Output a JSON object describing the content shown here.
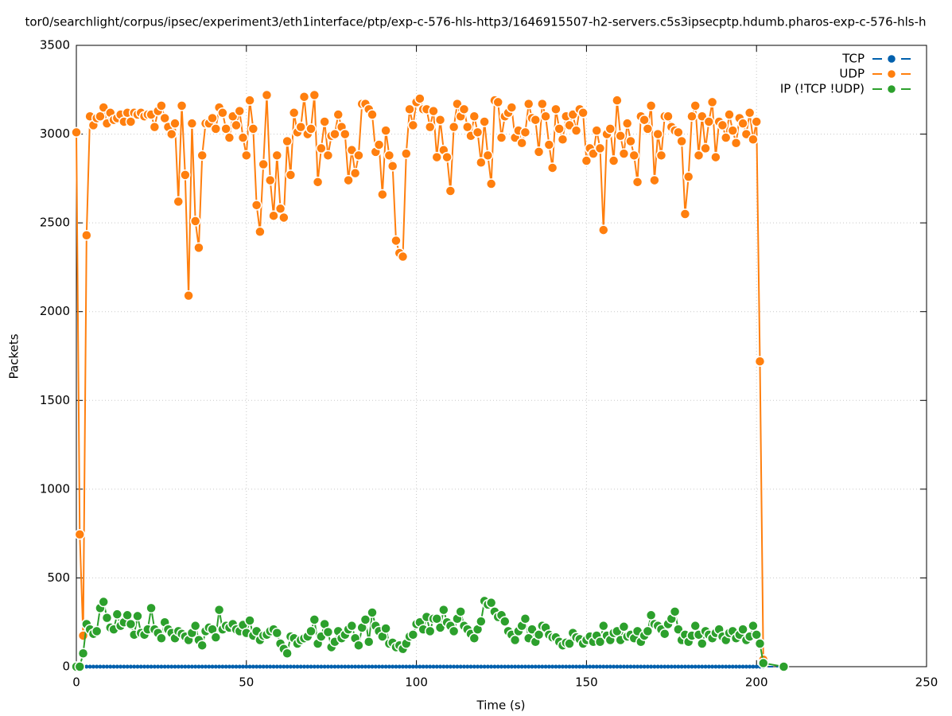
{
  "chart_data": {
    "type": "line",
    "title": "tor0/searchlight/corpus/ipsec/experiment3/eth1interface/ptp/exp-c-576-hls-http3/1646915507-h2-servers.c5s3ipsecptp.hdumb.pharos-exp-c-576-hls-h",
    "xlabel": "Time (s)",
    "ylabel": "Packets",
    "xlim": [
      0,
      250
    ],
    "xticks": [
      0,
      50,
      100,
      150,
      200,
      250
    ],
    "ylim": [
      0,
      3500
    ],
    "yticks": [
      0,
      500,
      1000,
      1500,
      2000,
      2500,
      3000,
      3500
    ],
    "grid": true,
    "legend": "upper right",
    "x": [
      0,
      1,
      2,
      3,
      4,
      5,
      6,
      7,
      8,
      9,
      10,
      11,
      12,
      13,
      14,
      15,
      16,
      17,
      18,
      19,
      20,
      21,
      22,
      23,
      24,
      25,
      26,
      27,
      28,
      29,
      30,
      31,
      32,
      33,
      34,
      35,
      36,
      37,
      38,
      39,
      40,
      41,
      42,
      43,
      44,
      45,
      46,
      47,
      48,
      49,
      50,
      51,
      52,
      53,
      54,
      55,
      56,
      57,
      58,
      59,
      60,
      61,
      62,
      63,
      64,
      65,
      66,
      67,
      68,
      69,
      70,
      71,
      72,
      73,
      74,
      75,
      76,
      77,
      78,
      79,
      80,
      81,
      82,
      83,
      84,
      85,
      86,
      87,
      88,
      89,
      90,
      91,
      92,
      93,
      94,
      95,
      96,
      97,
      98,
      99,
      100,
      101,
      102,
      103,
      104,
      105,
      106,
      107,
      108,
      109,
      110,
      111,
      112,
      113,
      114,
      115,
      116,
      117,
      118,
      119,
      120,
      121,
      122,
      123,
      124,
      125,
      126,
      127,
      128,
      129,
      130,
      131,
      132,
      133,
      134,
      135,
      136,
      137,
      138,
      139,
      140,
      141,
      142,
      143,
      144,
      145,
      146,
      147,
      148,
      149,
      150,
      151,
      152,
      153,
      154,
      155,
      156,
      157,
      158,
      159,
      160,
      161,
      162,
      163,
      164,
      165,
      166,
      167,
      168,
      169,
      170,
      171,
      172,
      173,
      174,
      175,
      176,
      177,
      178,
      179,
      180,
      181,
      182,
      183,
      184,
      185,
      186,
      187,
      188,
      189,
      190,
      191,
      192,
      193,
      194,
      195,
      196,
      197,
      198,
      199,
      200,
      201,
      202,
      208
    ],
    "series": [
      {
        "name": "TCP",
        "color": "#0060ad",
        "values": [
          0,
          0,
          0,
          0,
          0,
          0,
          0,
          0,
          0,
          0,
          0,
          0,
          0,
          0,
          0,
          0,
          0,
          0,
          0,
          0,
          0,
          0,
          0,
          0,
          0,
          0,
          0,
          0,
          0,
          0,
          0,
          0,
          0,
          0,
          0,
          0,
          0,
          0,
          0,
          0,
          0,
          0,
          0,
          0,
          0,
          0,
          0,
          0,
          0,
          0,
          0,
          0,
          0,
          0,
          0,
          0,
          0,
          0,
          0,
          0,
          0,
          0,
          0,
          0,
          0,
          0,
          0,
          0,
          0,
          0,
          0,
          0,
          0,
          0,
          0,
          0,
          0,
          0,
          0,
          0,
          0,
          0,
          0,
          0,
          0,
          0,
          0,
          0,
          0,
          0,
          0,
          0,
          0,
          0,
          0,
          0,
          0,
          0,
          0,
          0,
          0,
          0,
          0,
          0,
          0,
          0,
          0,
          0,
          0,
          0,
          0,
          0,
          0,
          0,
          0,
          0,
          0,
          0,
          0,
          0,
          0,
          0,
          0,
          0,
          0,
          0,
          0,
          0,
          0,
          0,
          0,
          0,
          0,
          0,
          0,
          0,
          0,
          0,
          0,
          0,
          0,
          0,
          0,
          0,
          0,
          0,
          0,
          0,
          0,
          0,
          0,
          0,
          0,
          0,
          0,
          0,
          0,
          0,
          0,
          0,
          0,
          0,
          0,
          0,
          0,
          0,
          0,
          0,
          0,
          0,
          0,
          0,
          0,
          0,
          0,
          0,
          0,
          0,
          0,
          0,
          0,
          0,
          0,
          0,
          0,
          0,
          0,
          0,
          0,
          0,
          0,
          0,
          0,
          0,
          0,
          0,
          0,
          0,
          0,
          0,
          0,
          0,
          0,
          0
        ]
      },
      {
        "name": "UDP",
        "color": "#ff7f0e",
        "values": [
          3010,
          745,
          175,
          2430,
          3100,
          3050,
          3090,
          3100,
          3150,
          3060,
          3120,
          3080,
          3090,
          3110,
          3070,
          3120,
          3070,
          3120,
          3110,
          3120,
          3100,
          3110,
          3110,
          3040,
          3130,
          3160,
          3090,
          3040,
          3000,
          3060,
          2620,
          3160,
          2770,
          2090,
          3060,
          2510,
          2360,
          2880,
          3060,
          3060,
          3090,
          3030,
          3150,
          3120,
          3030,
          2980,
          3100,
          3050,
          3130,
          2980,
          2880,
          3190,
          3030,
          2600,
          2450,
          2830,
          3220,
          2740,
          2540,
          2880,
          2580,
          2530,
          2960,
          2770,
          3120,
          3010,
          3040,
          3210,
          3000,
          3030,
          3220,
          2730,
          2920,
          3070,
          2880,
          2990,
          3000,
          3110,
          3040,
          3000,
          2740,
          2910,
          2780,
          2880,
          3170,
          3170,
          3140,
          3110,
          2900,
          2940,
          2660,
          3020,
          2880,
          2820,
          2400,
          2330,
          2310,
          2890,
          3140,
          3050,
          3180,
          3200,
          3140,
          3140,
          3040,
          3130,
          2870,
          3080,
          2910,
          2870,
          2680,
          3040,
          3170,
          3100,
          3140,
          3040,
          2990,
          3100,
          3010,
          2840,
          3070,
          2880,
          2720,
          3190,
          3180,
          2980,
          3100,
          3120,
          3150,
          2980,
          3020,
          2950,
          3010,
          3170,
          3090,
          3080,
          2900,
          3170,
          3100,
          2940,
          2810,
          3140,
          3030,
          2970,
          3100,
          3050,
          3110,
          3020,
          3140,
          3120,
          2850,
          2920,
          2890,
          3020,
          2920,
          2460,
          3000,
          3030,
          2850,
          3190,
          2990,
          2890,
          3060,
          2960,
          2880,
          2730,
          3100,
          3080,
          3030,
          3160,
          2740,
          3000,
          2880,
          3100,
          3100,
          3040,
          3020,
          3010,
          2960,
          2550,
          2760,
          3100,
          3160,
          2880,
          3100,
          2920,
          3070,
          3180,
          2870,
          3070,
          3050,
          2980,
          3110,
          3020,
          2950,
          3090,
          3060,
          3000,
          3120,
          2970,
          3070,
          1720,
          40,
          null
        ]
      },
      {
        "name": "IP (!TCP  !UDP)",
        "color": "#2ca02c",
        "values": [
          0,
          0,
          75,
          240,
          210,
          185,
          200,
          330,
          365,
          275,
          220,
          210,
          295,
          230,
          250,
          290,
          240,
          180,
          285,
          190,
          180,
          210,
          330,
          210,
          190,
          160,
          250,
          210,
          190,
          160,
          200,
          185,
          170,
          150,
          190,
          230,
          150,
          120,
          200,
          220,
          210,
          165,
          320,
          210,
          230,
          220,
          240,
          210,
          200,
          235,
          190,
          260,
          175,
          200,
          150,
          175,
          180,
          200,
          210,
          190,
          130,
          100,
          75,
          170,
          160,
          130,
          150,
          160,
          170,
          200,
          265,
          130,
          170,
          240,
          195,
          110,
          140,
          200,
          160,
          180,
          210,
          230,
          160,
          120,
          220,
          265,
          140,
          305,
          230,
          200,
          170,
          215,
          130,
          135,
          110,
          120,
          100,
          130,
          170,
          180,
          240,
          250,
          210,
          280,
          200,
          270,
          270,
          220,
          320,
          250,
          230,
          200,
          270,
          310,
          230,
          210,
          185,
          160,
          210,
          255,
          370,
          350,
          360,
          310,
          280,
          290,
          255,
          200,
          180,
          150,
          200,
          230,
          270,
          160,
          210,
          140,
          180,
          230,
          220,
          180,
          165,
          165,
          140,
          120,
          135,
          130,
          190,
          165,
          155,
          130,
          150,
          170,
          140,
          175,
          140,
          230,
          175,
          150,
          190,
          200,
          150,
          225,
          170,
          180,
          160,
          200,
          140,
          175,
          200,
          290,
          240,
          230,
          210,
          185,
          240,
          270,
          310,
          210,
          150,
          180,
          140,
          175,
          230,
          180,
          130,
          200,
          180,
          160,
          190,
          210,
          170,
          150,
          190,
          200,
          160,
          180,
          210,
          150,
          170,
          230,
          180,
          130,
          20,
          0
        ]
      }
    ]
  }
}
